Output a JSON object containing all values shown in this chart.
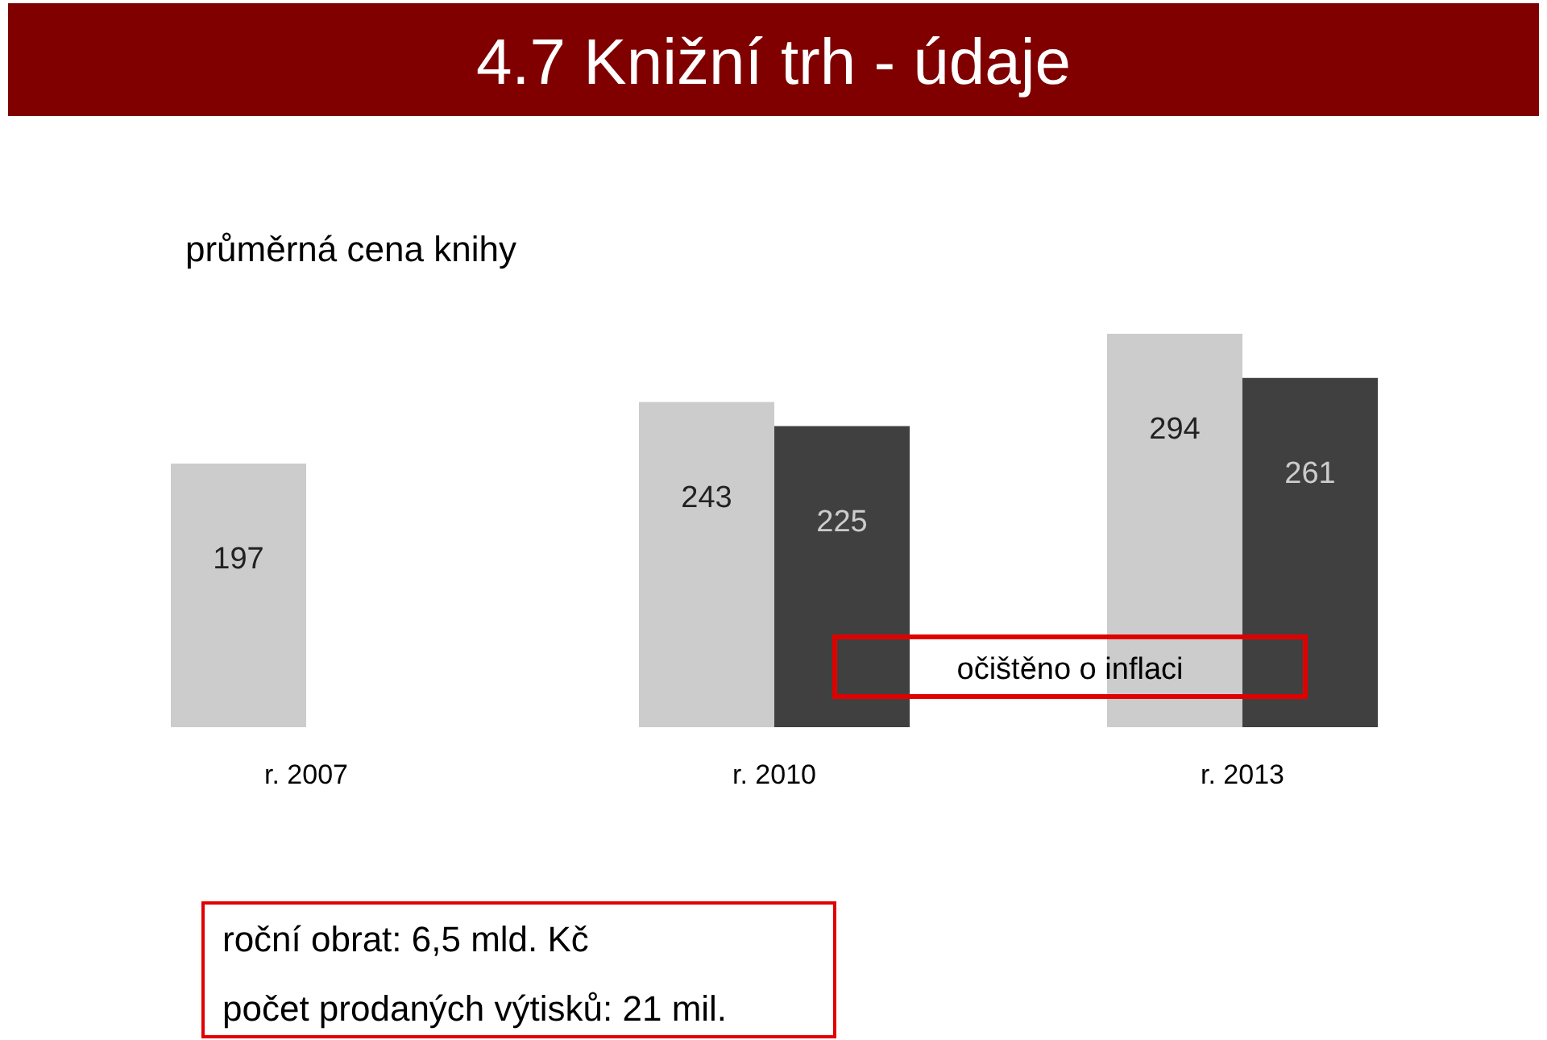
{
  "chart_data": {
    "type": "bar",
    "title": "4.7 Knižní trh - údaje",
    "subtitle": "průměrná cena knihy",
    "categories": [
      "r. 2007",
      "r. 2010",
      "r. 2013"
    ],
    "series": [
      {
        "color": "#cccccc",
        "values": [
          197,
          243,
          294
        ]
      },
      {
        "color": "#404040",
        "values": [
          null,
          225,
          261
        ]
      }
    ],
    "data_labels": true,
    "tick_labels": "x",
    "annotations": [
      "očištěno o inflaci",
      "roční obrat: 6,5 mld. Kč",
      "počet prodaných výtisků: 21 mil."
    ]
  }
}
